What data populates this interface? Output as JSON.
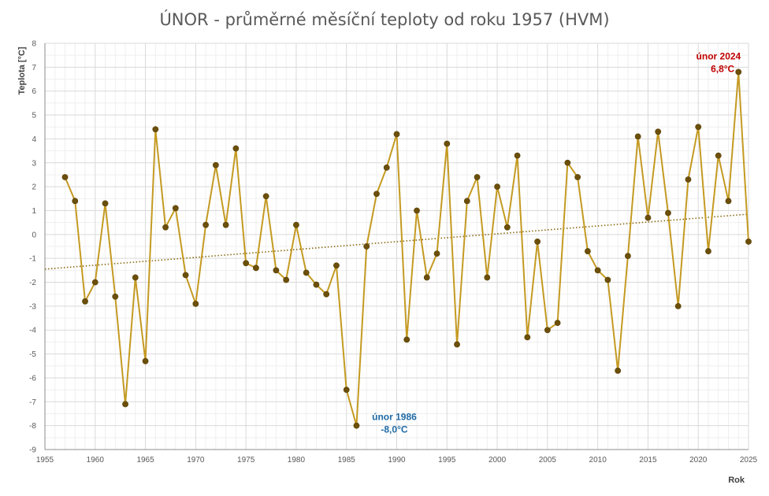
{
  "chart_data": {
    "type": "line",
    "title": "ÚNOR - průměrné měsíční teploty od roku 1957 (HVM)",
    "xlabel": "Rok",
    "ylabel": "Teplota [°C]",
    "xlim": [
      1955,
      2025
    ],
    "ylim": [
      -9,
      8
    ],
    "x_ticks": [
      "1955",
      "1960",
      "1965",
      "1970",
      "1975",
      "1980",
      "1985",
      "1990",
      "1995",
      "2000",
      "2005",
      "2010",
      "2015",
      "2020",
      "2025"
    ],
    "y_ticks": [
      "8",
      "7",
      "6",
      "5",
      "4",
      "3",
      "2",
      "1",
      "0",
      "-1",
      "-2",
      "-3",
      "-4",
      "-5",
      "-6",
      "-7",
      "-8",
      "-9"
    ],
    "grid": true,
    "line_color": "#c49a22",
    "marker_color": "#6b4f0a",
    "trend_color": "#8a6a10",
    "x": [
      1957,
      1958,
      1959,
      1960,
      1961,
      1962,
      1963,
      1964,
      1965,
      1966,
      1967,
      1968,
      1969,
      1970,
      1971,
      1972,
      1973,
      1974,
      1975,
      1976,
      1977,
      1978,
      1979,
      1980,
      1981,
      1982,
      1983,
      1984,
      1985,
      1986,
      1987,
      1988,
      1989,
      1990,
      1991,
      1992,
      1993,
      1994,
      1995,
      1996,
      1997,
      1998,
      1999,
      2000,
      2001,
      2002,
      2003,
      2004,
      2005,
      2006,
      2007,
      2008,
      2009,
      2010,
      2011,
      2012,
      2013,
      2014,
      2015,
      2016,
      2017,
      2018,
      2019,
      2020,
      2021,
      2022,
      2023,
      2024,
      2025
    ],
    "series": [
      {
        "values": [
          2.4,
          1.4,
          -2.8,
          -2.0,
          1.3,
          -2.6,
          -7.1,
          -1.8,
          -5.3,
          4.4,
          0.3,
          1.1,
          -1.7,
          -2.9,
          0.4,
          2.9,
          0.4,
          3.6,
          -1.2,
          -1.4,
          1.6,
          -1.5,
          -1.9,
          0.4,
          -1.6,
          -2.1,
          -2.5,
          -1.3,
          -6.5,
          -8.0,
          -0.5,
          1.7,
          2.8,
          4.2,
          -4.4,
          1.0,
          -1.8,
          -0.8,
          3.8,
          -4.6,
          1.4,
          2.4,
          -1.8,
          2.0,
          0.3,
          3.3,
          -4.3,
          -0.3,
          -4.0,
          -3.7,
          3.0,
          2.4,
          -0.7,
          -1.5,
          -1.9,
          -5.7,
          -0.9,
          4.1,
          0.7,
          4.3,
          0.9,
          -3.0,
          2.3,
          4.5,
          -0.7,
          3.3,
          1.4,
          6.8,
          -0.3
        ]
      }
    ],
    "trend": {
      "type": "linear",
      "start": [
        1955,
        -1.45
      ],
      "end": [
        2025,
        0.85
      ]
    },
    "annotations": [
      {
        "line1": "únor 2024",
        "line2": "6,8°C",
        "color": "#c00000",
        "x": 2024,
        "y": 6.8
      },
      {
        "line1": "únor 1986",
        "line2": "-8,0°C",
        "color": "#1f6aa5",
        "x": 1986,
        "y": -8.0
      }
    ]
  }
}
